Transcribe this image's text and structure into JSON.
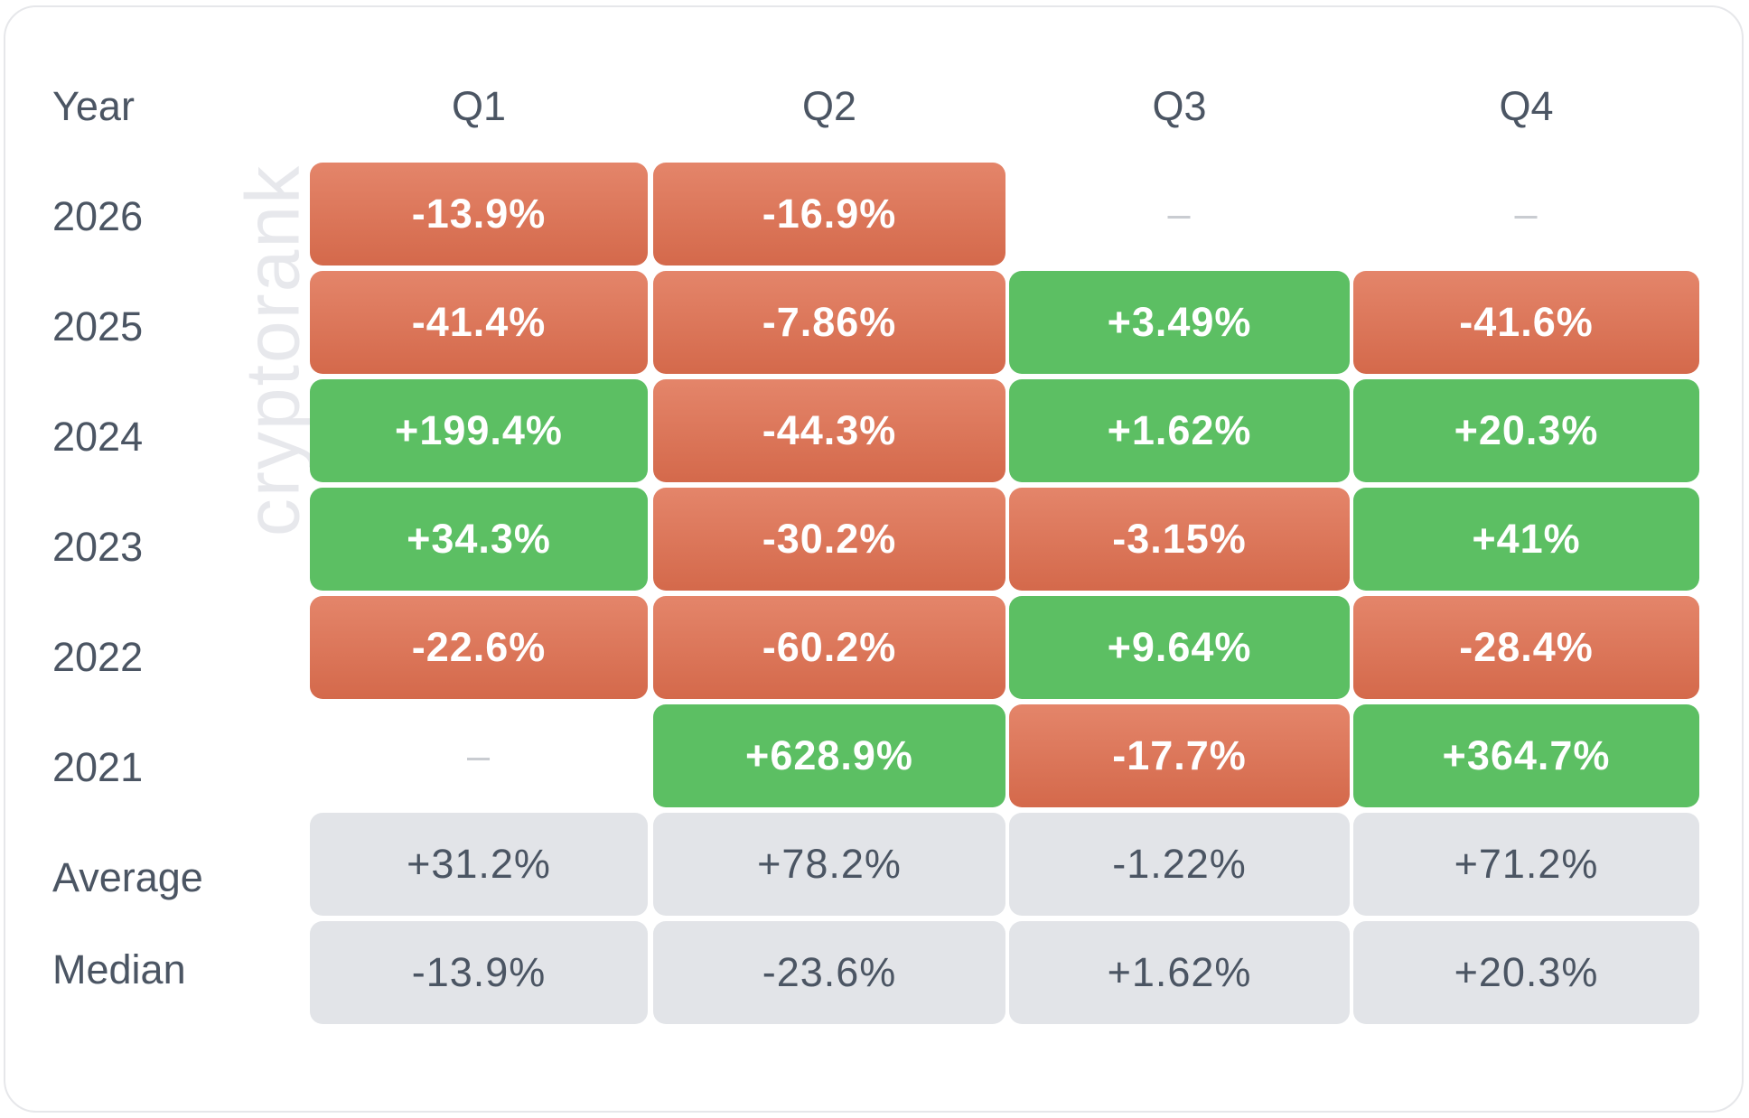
{
  "watermark": "cryptorank",
  "chart_data": {
    "type": "table",
    "row_header": "Year",
    "columns": [
      "Q1",
      "Q2",
      "Q3",
      "Q4"
    ],
    "rows": [
      {
        "label": "2026",
        "values": [
          "-13.9%",
          "-16.9%",
          "–",
          "–"
        ],
        "numeric": [
          -13.9,
          -16.9,
          null,
          null
        ]
      },
      {
        "label": "2025",
        "values": [
          "-41.4%",
          "-7.86%",
          "+3.49%",
          "-41.6%"
        ],
        "numeric": [
          -41.4,
          -7.86,
          3.49,
          -41.6
        ]
      },
      {
        "label": "2024",
        "values": [
          "+199.4%",
          "-44.3%",
          "+1.62%",
          "+20.3%"
        ],
        "numeric": [
          199.4,
          -44.3,
          1.62,
          20.3
        ]
      },
      {
        "label": "2023",
        "values": [
          "+34.3%",
          "-30.2%",
          "-3.15%",
          "+41%"
        ],
        "numeric": [
          34.3,
          -30.2,
          -3.15,
          41
        ]
      },
      {
        "label": "2022",
        "values": [
          "-22.6%",
          "-60.2%",
          "+9.64%",
          "-28.4%"
        ],
        "numeric": [
          -22.6,
          -60.2,
          9.64,
          -28.4
        ]
      },
      {
        "label": "2021",
        "values": [
          "–",
          "+628.9%",
          "-17.7%",
          "+364.7%"
        ],
        "numeric": [
          null,
          628.9,
          -17.7,
          364.7
        ]
      }
    ],
    "summary_rows": [
      {
        "label": "Average",
        "values": [
          "+31.2%",
          "+78.2%",
          "-1.22%",
          "+71.2%"
        ]
      },
      {
        "label": "Median",
        "values": [
          "-13.9%",
          "-23.6%",
          "+1.62%",
          "+20.3%"
        ]
      }
    ],
    "colors": {
      "positive": "#5cbf63",
      "negative": "#dd7858",
      "summary": "#e2e4e8"
    }
  }
}
